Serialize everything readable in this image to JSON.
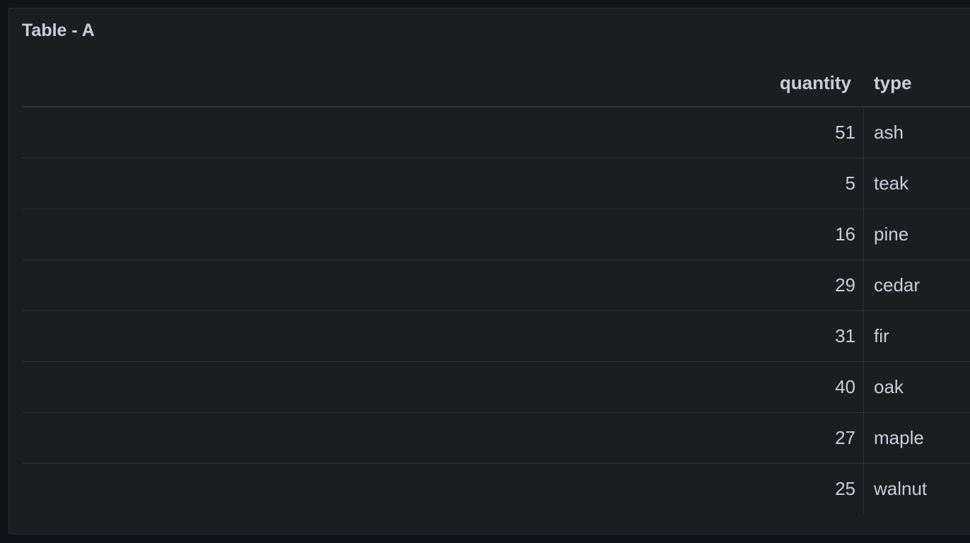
{
  "panel": {
    "title": "Table - A"
  },
  "table": {
    "columns": [
      "quantity",
      "type"
    ],
    "rows": [
      {
        "quantity": "51",
        "type": "ash"
      },
      {
        "quantity": "5",
        "type": "teak"
      },
      {
        "quantity": "16",
        "type": "pine"
      },
      {
        "quantity": "29",
        "type": "cedar"
      },
      {
        "quantity": "31",
        "type": "fir"
      },
      {
        "quantity": "40",
        "type": "oak"
      },
      {
        "quantity": "27",
        "type": "maple"
      },
      {
        "quantity": "25",
        "type": "walnut"
      }
    ]
  }
}
